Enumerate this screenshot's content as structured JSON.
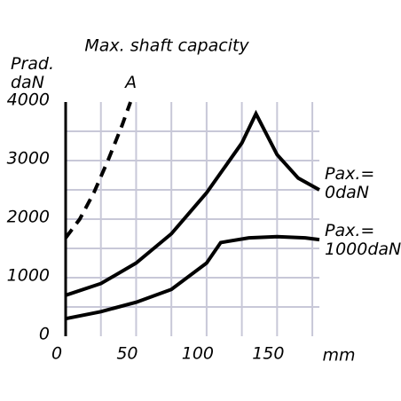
{
  "chart_data": {
    "type": "line",
    "title": "Max. shaft capacity",
    "y_label": "Prad.\ndaN",
    "x_label": "mm",
    "xlim": [
      0,
      180
    ],
    "ylim": [
      0,
      4000
    ],
    "xticks": [
      0,
      50,
      100,
      150
    ],
    "yticks": [
      0,
      1000,
      2000,
      3000,
      4000
    ],
    "xgrid": [
      25,
      50,
      75,
      100,
      125,
      150,
      175
    ],
    "ygrid": [
      500,
      1000,
      1500,
      2000,
      2500,
      3000,
      3500
    ],
    "grid": true,
    "series": [
      {
        "name": "Pax.=\n0daN",
        "color": "#000000",
        "dashed": false,
        "x": [
          0,
          25,
          50,
          75,
          100,
          125,
          135,
          150,
          165,
          180
        ],
        "values": [
          700,
          900,
          1250,
          1750,
          2450,
          3300,
          3800,
          3100,
          2700,
          2500
        ]
      },
      {
        "name": "Pax.=\n1000daN",
        "color": "#000000",
        "dashed": false,
        "x": [
          0,
          25,
          50,
          75,
          100,
          110,
          130,
          150,
          170,
          180
        ],
        "values": [
          300,
          420,
          580,
          800,
          1250,
          1600,
          1680,
          1700,
          1680,
          1650
        ]
      },
      {
        "name": "A",
        "color": "#000000",
        "dashed": true,
        "x": [
          0,
          10,
          20,
          30,
          40,
          46
        ],
        "values": [
          1680,
          2000,
          2450,
          3000,
          3600,
          4000
        ]
      }
    ]
  }
}
